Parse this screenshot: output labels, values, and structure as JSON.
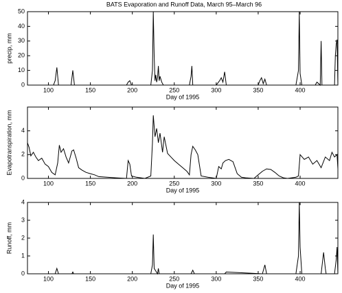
{
  "title": "BATS Evaporation and Runoff Data, March 95–March 96",
  "chart_data": [
    {
      "type": "line",
      "ylabel": "precip, mm",
      "xlabel": "Day of 1995",
      "xlim": [
        75,
        445
      ],
      "xticks": [
        100,
        150,
        200,
        250,
        300,
        350,
        400
      ],
      "ylim": [
        0,
        50
      ],
      "yticks": [
        0,
        10,
        20,
        30,
        40,
        50
      ],
      "series": [
        {
          "name": "precip",
          "color": "#000000",
          "x": [
            75,
            106,
            108,
            110,
            112,
            127,
            129,
            131,
            193,
            195,
            197,
            199,
            222,
            224,
            225,
            226,
            227,
            228,
            229,
            230,
            231,
            232,
            233,
            235,
            237,
            240,
            268,
            270,
            271,
            272,
            300,
            304,
            306,
            308,
            310,
            312,
            330,
            350,
            352,
            354,
            356,
            358,
            360,
            395,
            398,
            399,
            400,
            402,
            418,
            420,
            424,
            425,
            426,
            428,
            441,
            442,
            443,
            444,
            445
          ],
          "values": [
            0,
            0,
            3,
            12,
            0,
            0,
            10,
            0,
            0,
            2,
            3,
            0,
            0,
            10,
            50,
            20,
            3,
            7,
            2,
            5,
            13,
            3,
            6,
            2,
            0,
            0,
            0,
            6,
            13,
            0,
            0,
            3,
            5,
            2,
            9,
            0,
            0,
            0,
            3,
            5,
            1,
            4,
            0,
            0,
            10,
            50,
            8,
            0,
            0,
            2,
            0,
            30,
            0,
            0,
            0,
            20,
            28,
            31,
            0
          ]
        }
      ]
    },
    {
      "type": "line",
      "ylabel": "Evapotranspiration, mm",
      "xlabel": "Day of 1995",
      "xlim": [
        75,
        445
      ],
      "xticks": [
        100,
        150,
        200,
        250,
        300,
        350,
        400
      ],
      "ylim": [
        0,
        6
      ],
      "yticks": [
        0,
        2,
        4
      ],
      "series": [
        {
          "name": "evap",
          "color": "#000000",
          "x": [
            75,
            77,
            79,
            82,
            85,
            88,
            92,
            96,
            100,
            104,
            108,
            111,
            113,
            115,
            118,
            121,
            124,
            128,
            130,
            133,
            136,
            140,
            145,
            150,
            155,
            160,
            170,
            180,
            193,
            195,
            197,
            199,
            205,
            215,
            222,
            224,
            225,
            227,
            229,
            231,
            233,
            236,
            238,
            242,
            246,
            250,
            255,
            260,
            265,
            268,
            270,
            272,
            275,
            278,
            282,
            290,
            300,
            303,
            306,
            308,
            311,
            315,
            320,
            325,
            330,
            335,
            345,
            350,
            355,
            360,
            365,
            370,
            375,
            380,
            385,
            395,
            398,
            400,
            405,
            410,
            415,
            420,
            425,
            430,
            435,
            438,
            441,
            444,
            445
          ],
          "values": [
            3.0,
            2.6,
            1.9,
            2.2,
            1.8,
            1.5,
            1.7,
            1.2,
            1.0,
            0.5,
            0.3,
            1.3,
            2.8,
            2.2,
            2.5,
            1.8,
            1.3,
            2.3,
            2.4,
            1.7,
            0.9,
            0.7,
            0.5,
            0.4,
            0.3,
            0.15,
            0.1,
            0.05,
            0,
            1.5,
            1.2,
            0.2,
            0.1,
            0,
            0.2,
            3.0,
            5.3,
            3.5,
            4.2,
            3.0,
            3.8,
            2.2,
            3.5,
            2.1,
            1.8,
            1.5,
            1.2,
            0.9,
            0.6,
            0.3,
            2.0,
            2.7,
            2.4,
            2.0,
            0.2,
            0.1,
            0,
            1.0,
            0.8,
            1.3,
            1.5,
            1.6,
            1.4,
            0.4,
            0.1,
            0.05,
            0,
            0.3,
            0.6,
            0.8,
            0.75,
            0.5,
            0.2,
            0.05,
            0,
            0.1,
            0.2,
            2.0,
            1.6,
            1.8,
            1.2,
            1.5,
            0.9,
            1.8,
            1.5,
            2.2,
            1.8,
            2.0,
            0.8
          ]
        }
      ]
    },
    {
      "type": "line",
      "ylabel": "Runoff, mm",
      "xlabel": "Day of 1995",
      "xlim": [
        75,
        445
      ],
      "xticks": [
        100,
        150,
        200,
        250,
        300,
        350,
        400
      ],
      "ylim": [
        0,
        4
      ],
      "yticks": [
        0,
        1,
        2,
        3,
        4
      ],
      "series": [
        {
          "name": "runoff",
          "color": "#000000",
          "x": [
            75,
            108,
            110,
            112,
            128,
            129,
            130,
            222,
            224,
            225,
            226,
            230,
            231,
            232,
            270,
            272,
            274,
            310,
            312,
            355,
            358,
            360,
            395,
            398,
            399,
            400,
            402,
            425,
            428,
            430,
            431,
            441,
            443,
            444,
            445
          ],
          "values": [
            0,
            0,
            0.3,
            0,
            0,
            0.1,
            0,
            0,
            0.5,
            2.2,
            0.3,
            0,
            0.3,
            0,
            0,
            0.2,
            0,
            0,
            0.1,
            0,
            0.5,
            0,
            0,
            1.0,
            4.0,
            1.5,
            0,
            0,
            1.2,
            0.3,
            0,
            0,
            0.8,
            1.5,
            0
          ]
        }
      ]
    }
  ]
}
